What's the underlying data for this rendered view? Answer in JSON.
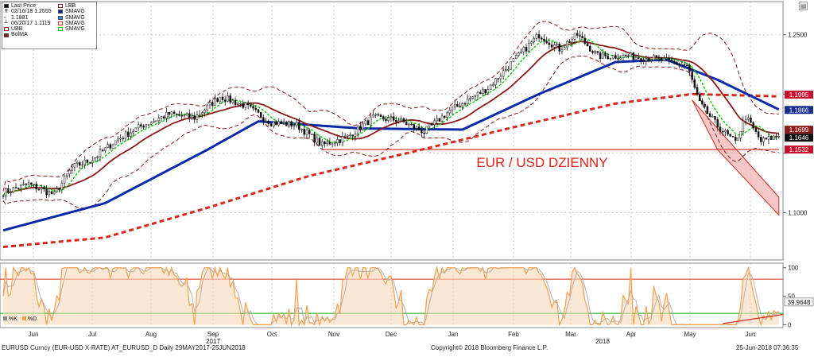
{
  "legend": {
    "left": [
      "Last Price",
      "02/16/18 1.2555",
      "1.1881",
      "06/20/17 1.1119",
      "UBB",
      "BolMA"
    ],
    "right": [
      "LBB",
      "SMAVG",
      "SMAVG",
      "SMAVG",
      "SMAVG"
    ]
  },
  "oscillator_legend": [
    "%K",
    "%D"
  ],
  "annotation": "EUR / USD DZIENNY",
  "price_tags": [
    "1.1995",
    "1.1866",
    "1.1699",
    "1.1646",
    "1.1532"
  ],
  "osc_tags": [
    "39.9648"
  ],
  "footer": {
    "left": "EURUSD Curncy (EUR-USD X-RATE) AT_EURUSD_D  Daily 29MAY2017-25JUN2018",
    "center": "Copyright© 2018 Bloomberg Finance L.P.",
    "right": "25-Jun-2018 07:36:35"
  },
  "colors": {
    "candle": "#111111",
    "bollinger": "#8b1a1a",
    "sma_fast": "#00cc00",
    "sma_mid": "#8b1a1a",
    "sma_slow": "#0a2aa8",
    "sma_long": "#d62a1e",
    "channel": "#f2b6b6",
    "stoch_k": "#f4a050",
    "stoch_d": "#b0b0b0"
  },
  "chart_data": [
    {
      "type": "candlestick",
      "series_name": "EURUSD Curncy",
      "ylim": [
        1.06,
        1.278
      ],
      "y_ticks": [
        1.1,
        1.15,
        1.2,
        1.25
      ],
      "y_tick_labels": [
        "1.1000",
        "",
        "",
        "1.2500"
      ],
      "x_months": [
        "Jun",
        "Jul",
        "Aug",
        "Sep",
        "Oct",
        "Nov",
        "Dec",
        "Jan",
        "Feb",
        "Mar",
        "Apr",
        "May",
        "Jun"
      ],
      "x_years": [
        "2017",
        "2018"
      ],
      "num_periods": 284,
      "price_anchors": [
        [
          0,
          1.117
        ],
        [
          10,
          1.124
        ],
        [
          20,
          1.115
        ],
        [
          27,
          1.138
        ],
        [
          35,
          1.145
        ],
        [
          45,
          1.162
        ],
        [
          55,
          1.174
        ],
        [
          65,
          1.183
        ],
        [
          75,
          1.18
        ],
        [
          85,
          1.198
        ],
        [
          95,
          1.19
        ],
        [
          105,
          1.176
        ],
        [
          115,
          1.174
        ],
        [
          125,
          1.157
        ],
        [
          135,
          1.164
        ],
        [
          145,
          1.18
        ],
        [
          155,
          1.178
        ],
        [
          165,
          1.168
        ],
        [
          175,
          1.186
        ],
        [
          190,
          1.205
        ],
        [
          200,
          1.228
        ],
        [
          210,
          1.25
        ],
        [
          218,
          1.238
        ],
        [
          225,
          1.25
        ],
        [
          233,
          1.232
        ],
        [
          245,
          1.232
        ],
        [
          255,
          1.23
        ],
        [
          268,
          1.224
        ],
        [
          273,
          1.192
        ],
        [
          280,
          1.173
        ],
        [
          287,
          1.159
        ],
        [
          291,
          1.181
        ],
        [
          297,
          1.16
        ],
        [
          304,
          1.165
        ]
      ],
      "sma_long_anchors": [
        [
          0,
          1.071
        ],
        [
          40,
          1.079
        ],
        [
          80,
          1.104
        ],
        [
          120,
          1.131
        ],
        [
          160,
          1.151
        ],
        [
          200,
          1.172
        ],
        [
          240,
          1.192
        ],
        [
          270,
          1.2
        ],
        [
          304,
          1.198
        ]
      ],
      "sma_slow_anchors": [
        [
          0,
          1.085
        ],
        [
          40,
          1.108
        ],
        [
          80,
          1.153
        ],
        [
          100,
          1.177
        ],
        [
          140,
          1.171
        ],
        [
          180,
          1.17
        ],
        [
          210,
          1.2
        ],
        [
          240,
          1.227
        ],
        [
          260,
          1.229
        ],
        [
          280,
          1.212
        ],
        [
          304,
          1.187
        ]
      ],
      "lines": [
        {
          "name": "support",
          "y": 1.1532,
          "x_from": 125,
          "x_to": 304
        },
        {
          "name": "channel_upper",
          "from": [
            270,
            1.195
          ],
          "to": [
            304,
            1.113
          ]
        },
        {
          "name": "channel_lower",
          "from": [
            280,
            1.153
          ],
          "to": [
            304,
            1.098
          ]
        }
      ]
    },
    {
      "type": "line",
      "series": [
        {
          "name": "%K"
        },
        {
          "name": "%D"
        }
      ],
      "ylim": [
        -5,
        108
      ],
      "y_ticks": [
        0,
        50,
        100
      ],
      "y_tick_labels": [
        "0",
        "50",
        "100"
      ],
      "hlines": [
        80,
        20
      ],
      "trendline": {
        "from": [
          282,
          2
        ],
        "to": [
          310,
          18
        ]
      },
      "last_value": 39.9648
    }
  ]
}
